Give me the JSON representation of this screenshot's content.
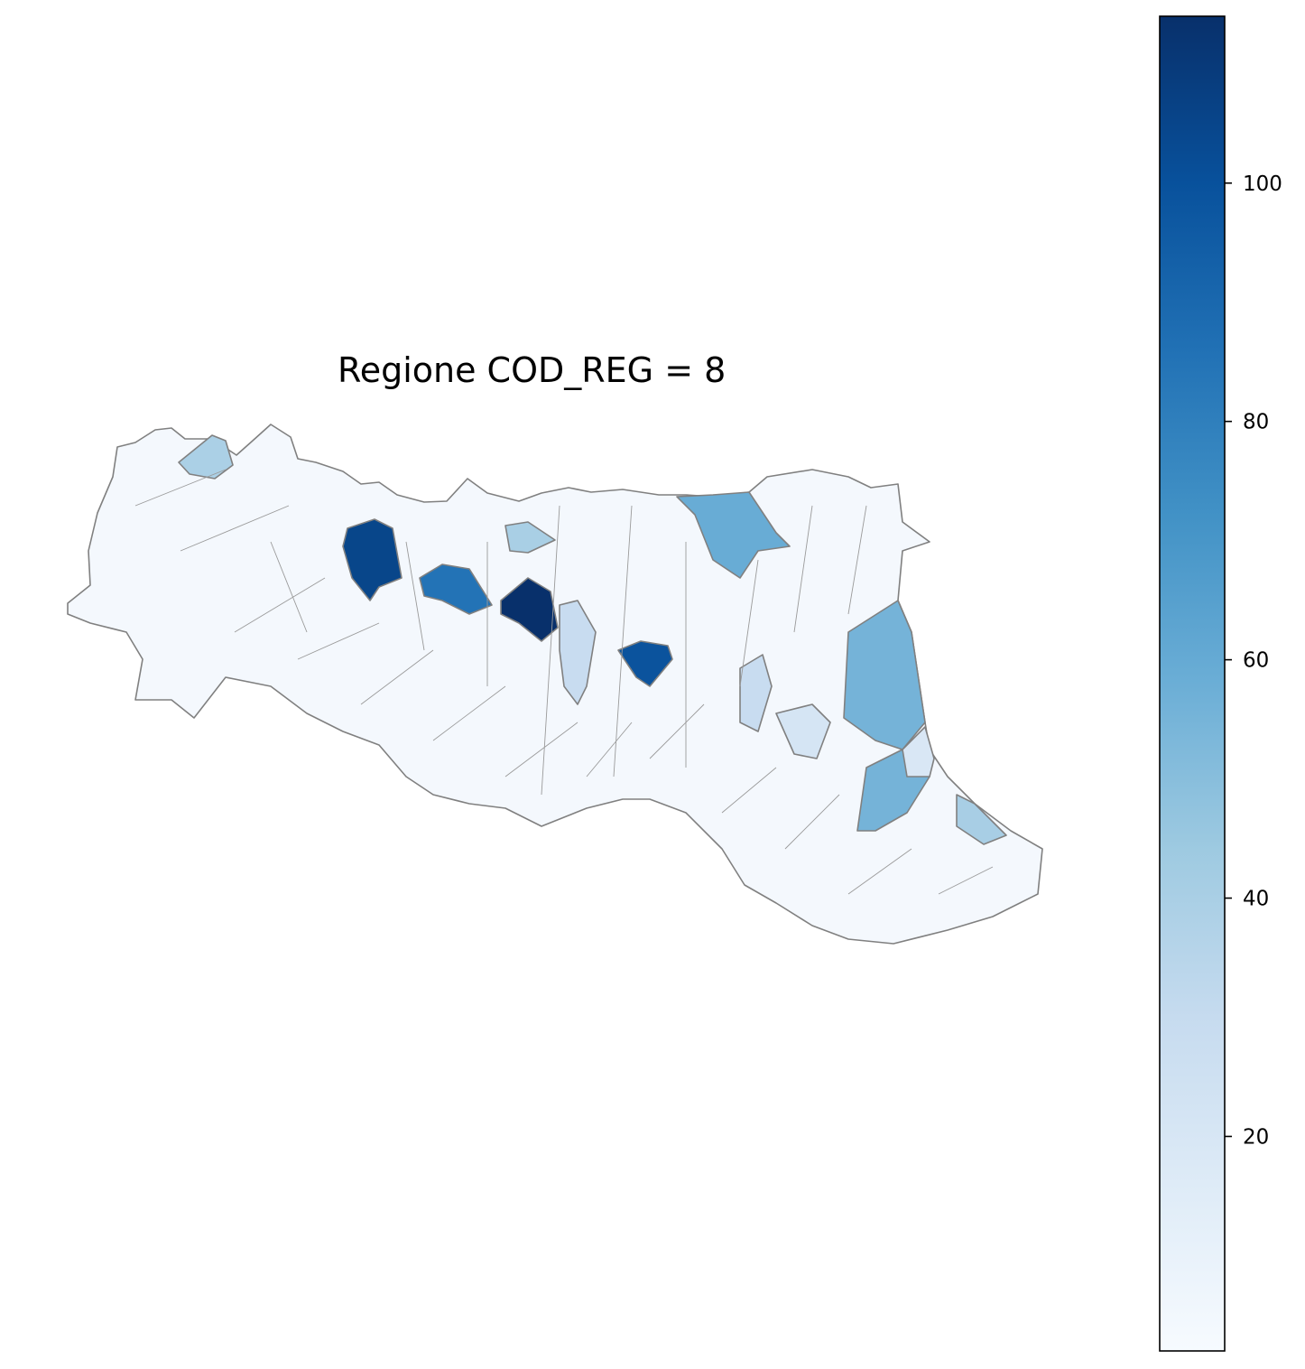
{
  "title": "Regione COD_REG = 8",
  "colormap": {
    "name": "Blues",
    "vmin": 2,
    "vmax": 114,
    "stops": [
      "#f7fbff",
      "#deebf7",
      "#c6dbef",
      "#9ecae1",
      "#6baed6",
      "#4292c6",
      "#2171b5",
      "#08519c",
      "#08306b"
    ]
  },
  "colorbar": {
    "ticks": [
      {
        "value": 20,
        "label": "20"
      },
      {
        "value": 40,
        "label": "40"
      },
      {
        "value": 60,
        "label": "60"
      },
      {
        "value": 80,
        "label": "80"
      },
      {
        "value": 100,
        "label": "100"
      }
    ]
  },
  "styles": {
    "border_color": "#808080",
    "background": "#ffffff"
  }
}
